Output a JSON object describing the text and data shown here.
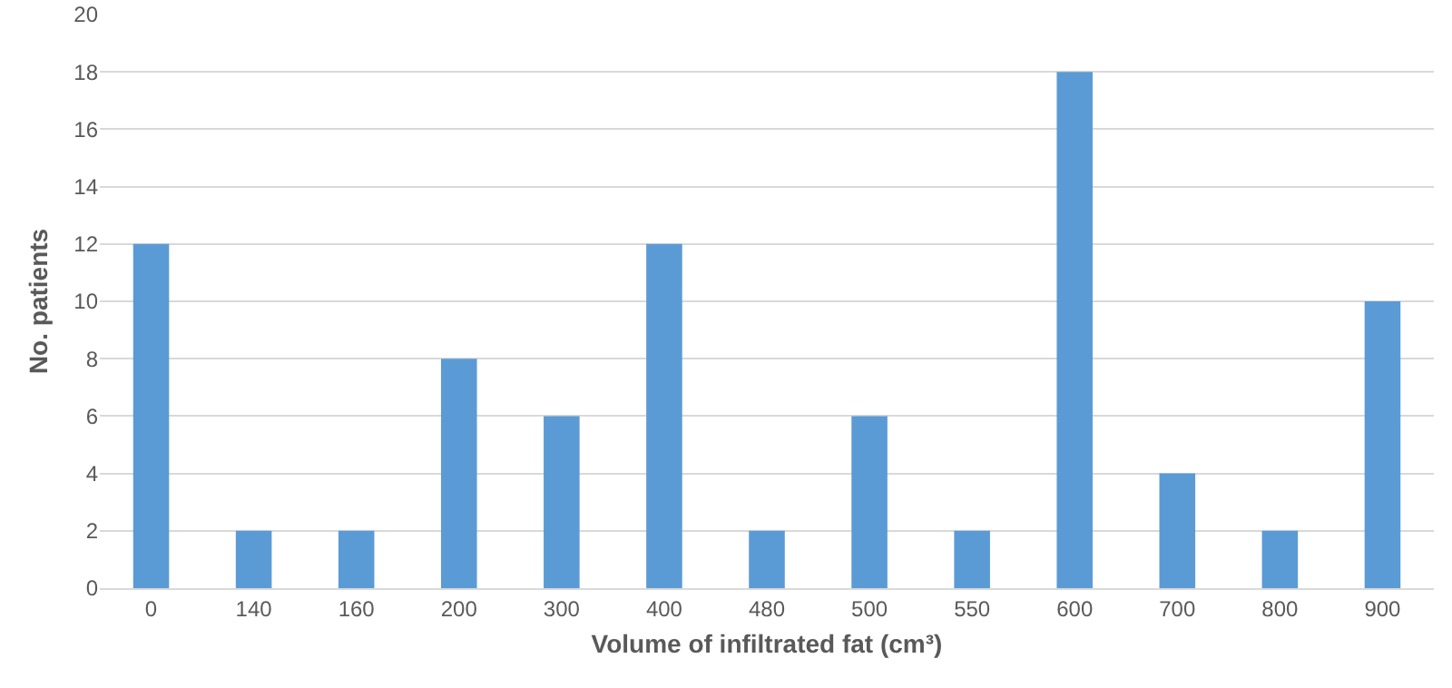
{
  "chart_data": {
    "type": "bar",
    "xlabel": "Volume of infiltrated fat (cm³)",
    "ylabel": "No. patients",
    "categories": [
      "0",
      "140",
      "160",
      "200",
      "300",
      "400",
      "480",
      "500",
      "550",
      "600",
      "700",
      "800",
      "900"
    ],
    "values": [
      12,
      2,
      2,
      8,
      6,
      12,
      2,
      6,
      2,
      18,
      4,
      2,
      10
    ],
    "color": "#5b9bd5",
    "ylim": [
      0,
      20
    ],
    "yticks": [
      0,
      2,
      4,
      6,
      8,
      10,
      12,
      14,
      16,
      18,
      20
    ],
    "grid": "y"
  }
}
